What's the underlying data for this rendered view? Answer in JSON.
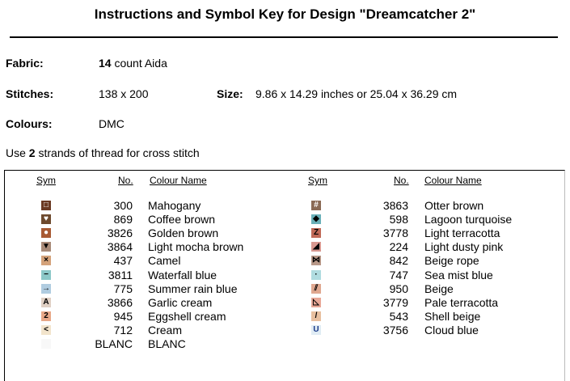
{
  "title": "Instructions and Symbol Key for Design \"Dreamcatcher 2\"",
  "fabric": {
    "label": "Fabric:",
    "count": "14",
    "rest": " count Aida"
  },
  "stitches": {
    "label": "Stitches:",
    "value": "138 x 200"
  },
  "size": {
    "label": "Size:",
    "value": "9.86 x 14.29 inches or 25.04 x 36.29 cm"
  },
  "colours": {
    "label": "Colours:",
    "value": "DMC"
  },
  "strands": {
    "pre": "Use ",
    "count": "2",
    "post": " strands of thread for cross stitch"
  },
  "headers": {
    "sym": "Sym",
    "no": "No.",
    "name": "Colour Name"
  },
  "left": [
    {
      "glyph": "□",
      "bg": "#6b3a24",
      "fg": "#fff",
      "no": "300",
      "name": "Mahogany"
    },
    {
      "glyph": "♥",
      "bg": "#6e4a2e",
      "fg": "#fff",
      "no": "869",
      "name": "Coffee brown"
    },
    {
      "glyph": "●",
      "bg": "#a85a34",
      "fg": "#fff",
      "no": "3826",
      "name": "Golden brown"
    },
    {
      "glyph": "▼",
      "bg": "#a88a78",
      "fg": "#000",
      "no": "3864",
      "name": "Light mocha brown"
    },
    {
      "glyph": "×",
      "bg": "#d4a27a",
      "fg": "#000",
      "no": "437",
      "name": "Camel"
    },
    {
      "glyph": "−",
      "bg": "#8cc8c8",
      "fg": "#000",
      "no": "3811",
      "name": "Waterfall blue"
    },
    {
      "glyph": "→",
      "bg": "#b0cce0",
      "fg": "#000",
      "no": "775",
      "name": "Summer rain blue"
    },
    {
      "glyph": "A",
      "bg": "#e0d0c4",
      "fg": "#000",
      "no": "3866",
      "name": "Garlic cream"
    },
    {
      "glyph": "2",
      "bg": "#e8a888",
      "fg": "#000",
      "no": "945",
      "name": "Eggshell cream"
    },
    {
      "glyph": "<",
      "bg": "#f2e4cc",
      "fg": "#000",
      "no": "712",
      "name": "Cream"
    },
    {
      "glyph": "",
      "bg": "#f8f8f8",
      "fg": "#000",
      "no": "BLANC",
      "name": "BLANC"
    }
  ],
  "right": [
    {
      "glyph": "#",
      "bg": "#8a6a55",
      "fg": "#fff",
      "no": "3863",
      "name": "Otter brown"
    },
    {
      "glyph": "◆",
      "bg": "#6ab0b8",
      "fg": "#000",
      "no": "598",
      "name": "Lagoon turquoise"
    },
    {
      "glyph": "Z",
      "bg": "#c06a58",
      "fg": "#000",
      "no": "3778",
      "name": "Light terracotta"
    },
    {
      "glyph": "◢",
      "bg": "#d89890",
      "fg": "#000",
      "no": "224",
      "name": "Light dusty pink"
    },
    {
      "glyph": "⋈",
      "bg": "#b89888",
      "fg": "#000",
      "no": "842",
      "name": "Beige rope"
    },
    {
      "glyph": "·",
      "bg": "#b0dce0",
      "fg": "#000",
      "no": "747",
      "name": "Sea mist blue"
    },
    {
      "glyph": "⫽",
      "bg": "#e0a890",
      "fg": "#000",
      "no": "950",
      "name": "Beige"
    },
    {
      "glyph": "◺",
      "bg": "#e8a898",
      "fg": "#000",
      "no": "3779",
      "name": "Pale terracotta"
    },
    {
      "glyph": "/",
      "bg": "#e8c0a0",
      "fg": "#000",
      "no": "543",
      "name": "Shell beige"
    },
    {
      "glyph": "U",
      "bg": "#e0ecf4",
      "fg": "#1a3a8a",
      "no": "3756",
      "name": "Cloud blue"
    }
  ]
}
